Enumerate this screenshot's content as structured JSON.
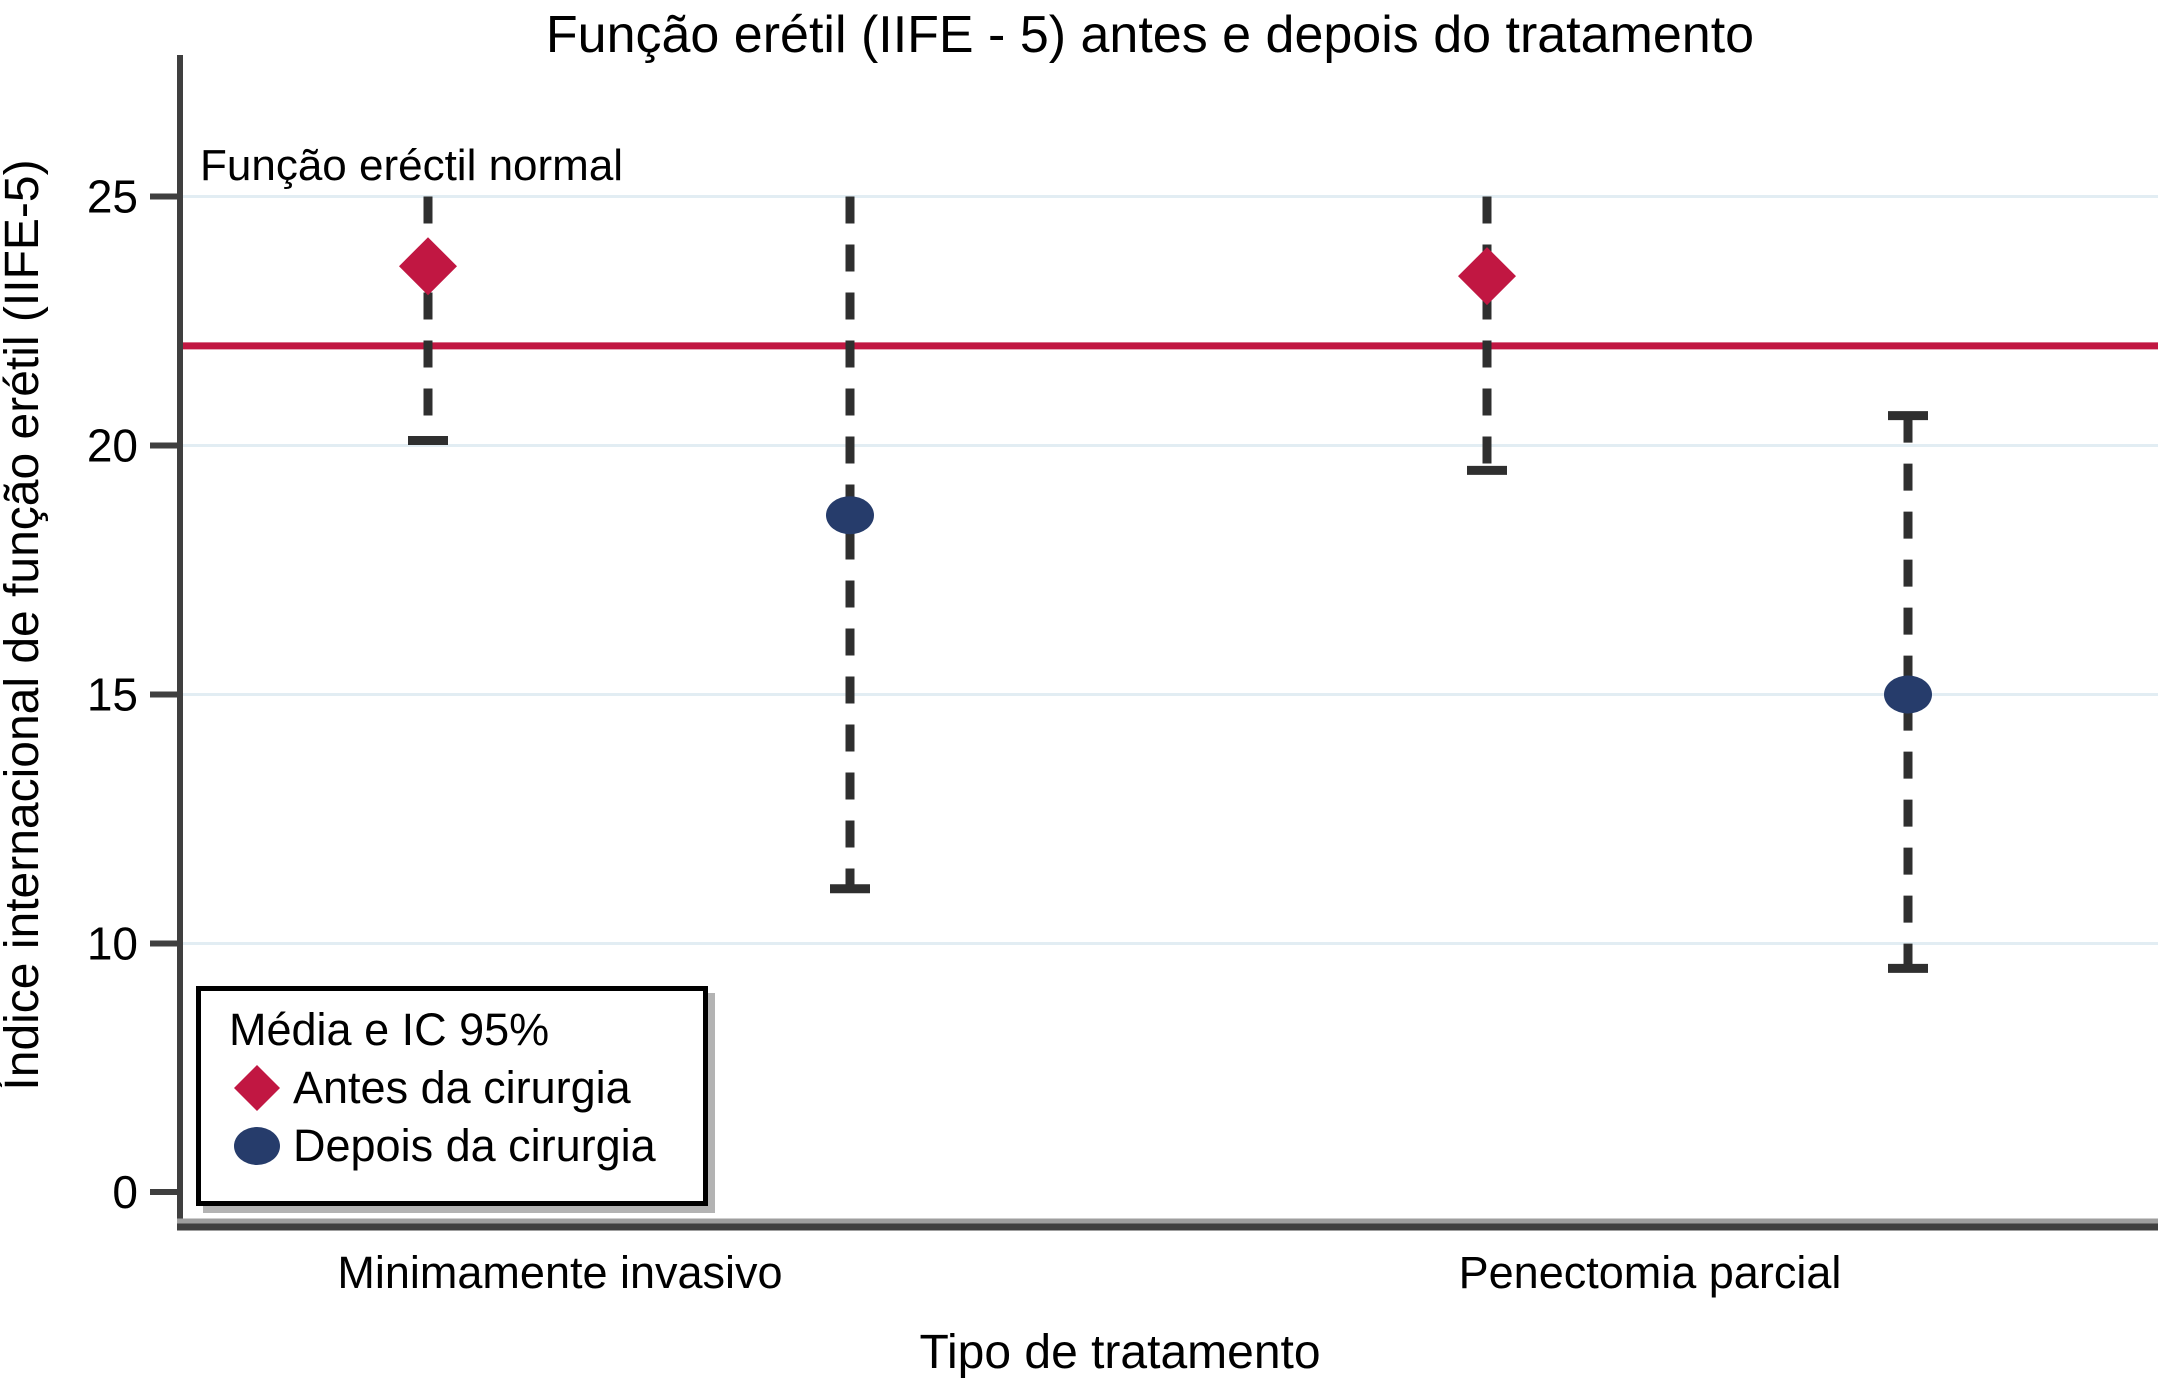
{
  "chart_data": {
    "type": "scatter",
    "title": "Função erétil (IIFE - 5) antes e depois do tratamento",
    "xlabel": "Tipo de tratamento",
    "ylabel": "Índice internacional de função erétil (IIFE-5)",
    "annotation": "Função eréctil normal",
    "reference_line": {
      "y": 22,
      "color": "#c11742"
    },
    "y_ticks": [
      0,
      10,
      15,
      20,
      25
    ],
    "ylim": [
      0,
      27.5
    ],
    "grid": "horizontal",
    "categories": [
      "Minimamente invasivo",
      "Penectomia parcial"
    ],
    "legend": {
      "title": "Média e IC 95%",
      "position": "bottom-left",
      "entries": [
        {
          "label": "Antes da cirurgia",
          "marker": "diamond",
          "color": "#c11742"
        },
        {
          "label": "Depois da cirurgia",
          "marker": "circle",
          "color": "#263c6b"
        }
      ]
    },
    "series": [
      {
        "name": "Antes da cirurgia",
        "marker": "diamond",
        "color": "#c11742",
        "points": [
          {
            "category": "Minimamente invasivo",
            "mean": 23.6,
            "ci_low": 20.1,
            "ci_high": 25.0
          },
          {
            "category": "Penectomia parcial",
            "mean": 23.4,
            "ci_low": 19.5,
            "ci_high": 25.0
          }
        ]
      },
      {
        "name": "Depois da cirurgia",
        "marker": "circle",
        "color": "#263c6b",
        "points": [
          {
            "category": "Minimamente invasivo",
            "mean": 18.6,
            "ci_low": 11.1,
            "ci_high": 25.0
          },
          {
            "category": "Penectomia parcial",
            "mean": 15.0,
            "ci_low": 9.5,
            "ci_high": 20.6
          }
        ]
      }
    ],
    "colors": {
      "before": "#c11742",
      "after": "#263c6b",
      "reference_line": "#c11742",
      "gridline": "#e2edf3",
      "error_bar": "#2f2f2f",
      "axis": "#3f3f3f"
    }
  }
}
